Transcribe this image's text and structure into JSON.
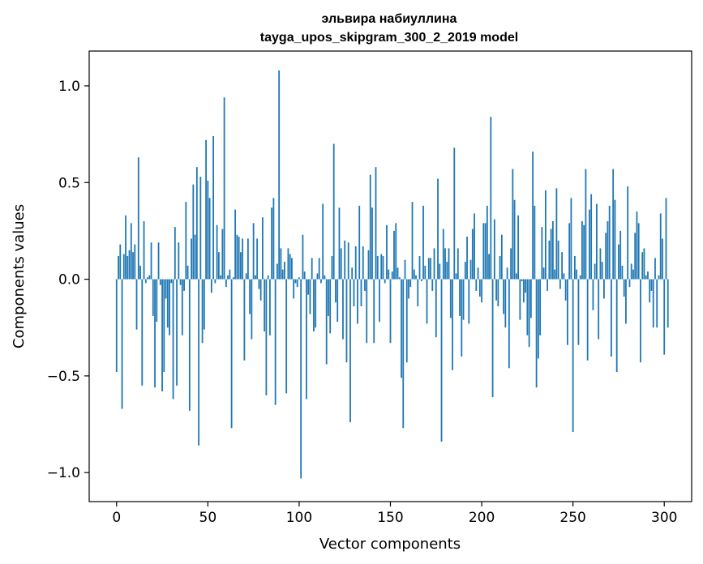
{
  "chart_data": {
    "type": "bar",
    "title": "эльвира набиуллина",
    "subtitle": "tayga_upos_skipgram_300_2_2019 model",
    "xlabel": "Vector components",
    "ylabel": "Components values",
    "xlim": [
      -15,
      315
    ],
    "ylim": [
      -1.15,
      1.18
    ],
    "xticks": [
      0,
      50,
      100,
      150,
      200,
      250,
      300
    ],
    "xtick_labels": [
      "0",
      "50",
      "100",
      "150",
      "200",
      "250",
      "300"
    ],
    "yticks": [
      -1.0,
      -0.5,
      0.0,
      0.5,
      1.0
    ],
    "ytick_labels": [
      "−1.0",
      "−0.5",
      "0.0",
      "0.5",
      "1.0"
    ],
    "bar_color": "#1f77b4",
    "values": [
      -0.48,
      0.12,
      0.18,
      -0.67,
      0.13,
      0.33,
      0.12,
      0.15,
      0.29,
      0.14,
      0.18,
      -0.26,
      0.63,
      0.07,
      -0.55,
      0.3,
      -0.02,
      0.01,
      0.02,
      0.19,
      -0.19,
      -0.56,
      -0.22,
      0.19,
      -0.03,
      -0.58,
      -0.48,
      -0.1,
      -0.25,
      -0.29,
      -0.02,
      -0.62,
      0.27,
      -0.55,
      0.19,
      -0.03,
      -0.29,
      -0.06,
      0.4,
      0.07,
      -0.68,
      0.21,
      0.49,
      0.23,
      0.58,
      -0.86,
      0.53,
      -0.33,
      -0.26,
      0.72,
      0.51,
      0.42,
      -0.07,
      0.74,
      -0.02,
      0.28,
      0.14,
      0.02,
      0.26,
      0.94,
      -0.04,
      0.02,
      0.05,
      -0.77,
      0.01,
      0.36,
      0.23,
      0.22,
      0.14,
      0.21,
      -0.42,
      0.03,
      0.21,
      -0.18,
      -0.31,
      0.29,
      0.02,
      0.21,
      -0.05,
      -0.11,
      0.32,
      -0.27,
      -0.6,
      0.02,
      -0.29,
      0.37,
      0.42,
      -0.65,
      0.08,
      1.08,
      0.16,
      0.05,
      0.09,
      -0.59,
      0.16,
      0.13,
      0.11,
      -0.1,
      -0.02,
      -0.04,
      0.01,
      -1.03,
      0.23,
      0.04,
      -0.62,
      -0.08,
      -0.18,
      0.11,
      -0.27,
      -0.25,
      0.03,
      0.11,
      -0.02,
      0.39,
      0.02,
      -0.44,
      -0.19,
      -0.28,
      0.12,
      0.7,
      -0.12,
      -0.22,
      0.37,
      0.16,
      -0.31,
      0.2,
      -0.43,
      0.19,
      -0.74,
      0.06,
      -0.14,
      0.17,
      -0.23,
      0.38,
      -0.14,
      0.17,
      -0.06,
      -0.33,
      0.15,
      0.54,
      0.37,
      -0.33,
      0.58,
      0.12,
      -0.22,
      0.13,
      0.12,
      -0.02,
      0.28,
      0.05,
      -0.33,
      0.04,
      0.25,
      0.29,
      0.06,
      0.01,
      -0.51,
      -0.77,
      0.1,
      -0.43,
      -0.1,
      -0.04,
      0.4,
      0.05,
      0.02,
      -0.14,
      0.12,
      -0.01,
      0.38,
      0.07,
      -0.23,
      0.11,
      0.11,
      -0.06,
      0.16,
      -0.3,
      0.52,
      0.08,
      -0.84,
      0.26,
      0.16,
      0.09,
      0.16,
      -0.2,
      -0.47,
      0.68,
      0.03,
      0.16,
      -0.19,
      -0.4,
      -0.21,
      0.09,
      0.22,
      -0.23,
      0.1,
      0.26,
      0.34,
      -0.06,
      0.06,
      -0.09,
      -0.12,
      0.29,
      0.29,
      0.38,
      0.13,
      0.84,
      -0.61,
      0.31,
      -0.11,
      -0.14,
      0.12,
      0.23,
      -0.18,
      -0.25,
      0.06,
      -0.46,
      0.16,
      0.57,
      0.41,
      0.03,
      0.33,
      -0.21,
      -0.01,
      -0.12,
      -0.07,
      -0.29,
      -0.35,
      -0.2,
      0.66,
      0.38,
      -0.56,
      -0.41,
      -0.29,
      0.27,
      0.06,
      0.46,
      -0.06,
      0.2,
      0.26,
      0.3,
      0.05,
      0.47,
      0.2,
      -0.05,
      0.14,
      0.03,
      -0.11,
      -0.34,
      0.29,
      0.42,
      -0.79,
      0.12,
      0.05,
      -0.34,
      0.02,
      0.3,
      0.28,
      0.57,
      -0.42,
      0.36,
      0.44,
      -0.16,
      0.08,
      0.39,
      -0.31,
      0.16,
      0.09,
      -0.1,
      0.24,
      0.3,
      0.38,
      -0.4,
      0.57,
      0.41,
      -0.48,
      0.18,
      0.25,
      0.07,
      -0.09,
      -0.23,
      0.48,
      -0.04,
      0.08,
      0.05,
      0.24,
      0.35,
      0.29,
      -0.43,
      0.14,
      0.16,
      0.02,
      0.04,
      -0.12,
      -0.06,
      -0.25,
      0.11,
      -0.25,
      0.02,
      0.34,
      0.21,
      -0.39,
      0.42,
      -0.25
    ]
  }
}
